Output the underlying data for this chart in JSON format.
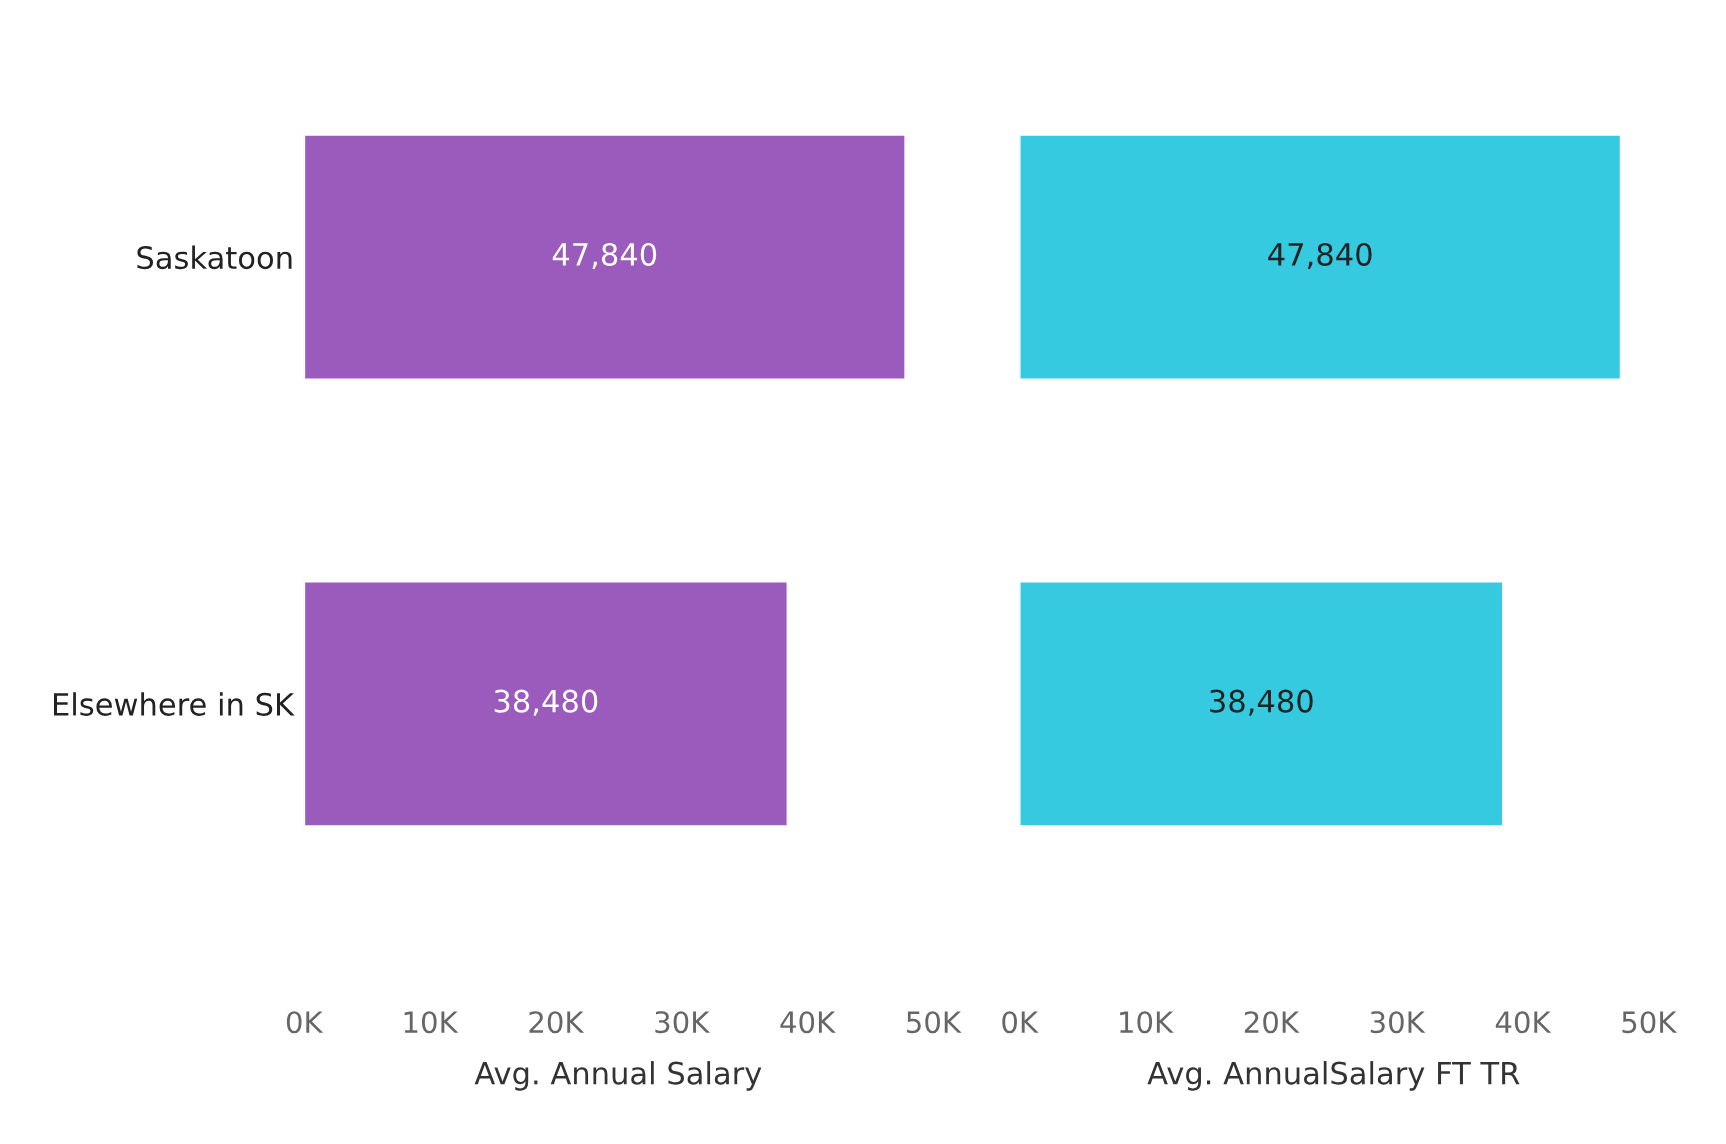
{
  "chart_data": [
    {
      "type": "bar",
      "orientation": "horizontal",
      "categories": [
        "Saskatoon",
        "Elsewhere in SK"
      ],
      "values": [
        47840,
        38480
      ],
      "value_labels": [
        "47,840",
        "38,480"
      ],
      "color": "#9a5bbd",
      "xlabel": "Avg. Annual Salary",
      "xlim": [
        0,
        50000
      ],
      "xticks": [
        {
          "value": 0,
          "label": "0K"
        },
        {
          "value": 10000,
          "label": "10K"
        },
        {
          "value": 20000,
          "label": "20K"
        },
        {
          "value": 30000,
          "label": "30K"
        },
        {
          "value": 40000,
          "label": "40K"
        },
        {
          "value": 50000,
          "label": "50K"
        }
      ],
      "grid": false
    },
    {
      "type": "bar",
      "orientation": "horizontal",
      "categories": [
        null,
        null
      ],
      "values": [
        47840,
        38480
      ],
      "value_labels": [
        "47,840",
        "38,480"
      ],
      "color": "#36cae0",
      "xlabel": "Avg. AnnualSalary FT TR",
      "xlim": [
        0,
        50000
      ],
      "xticks": [
        {
          "value": 0,
          "label": "0K"
        },
        {
          "value": 10000,
          "label": "10K"
        },
        {
          "value": 20000,
          "label": "20K"
        },
        {
          "value": 30000,
          "label": "30K"
        },
        {
          "value": 40000,
          "label": "40K"
        },
        {
          "value": 50000,
          "label": "50K"
        }
      ],
      "grid": false,
      "tick_labels": "x"
    }
  ]
}
